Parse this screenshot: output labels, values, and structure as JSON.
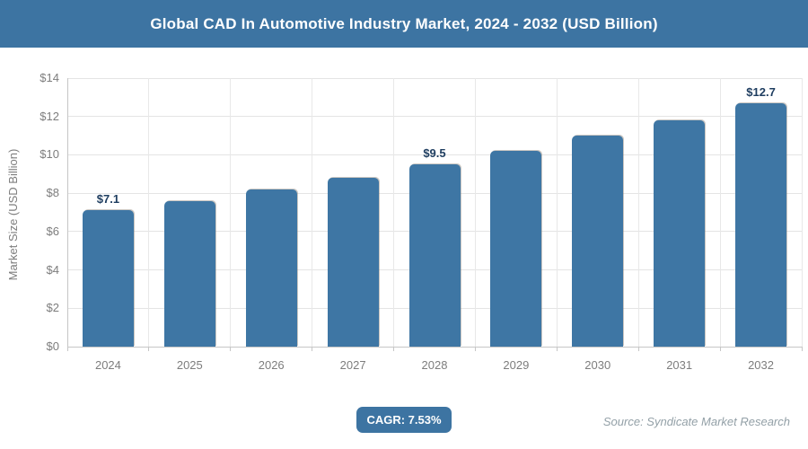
{
  "header": {
    "title": "Global CAD In Automotive Industry Market, 2024 - 2032 (USD Billion)"
  },
  "chart_data": {
    "type": "bar",
    "title": "Global CAD In Automotive Industry Market, 2024 - 2032 (USD Billion)",
    "categories": [
      "2024",
      "2025",
      "2026",
      "2027",
      "2028",
      "2029",
      "2030",
      "2031",
      "2032"
    ],
    "values": [
      7.1,
      7.6,
      8.2,
      8.8,
      9.5,
      10.2,
      11.0,
      11.8,
      12.7
    ],
    "bar_labels": [
      "$7.1",
      "",
      "",
      "",
      "$9.5",
      "",
      "",
      "",
      "$12.7"
    ],
    "xlabel": "",
    "ylabel": "Market Size (USD Billion)",
    "ylim": [
      0,
      14
    ],
    "yticks": [
      {
        "value": 0,
        "label": "$0"
      },
      {
        "value": 2,
        "label": "$2"
      },
      {
        "value": 4,
        "label": "$4"
      },
      {
        "value": 6,
        "label": "$6"
      },
      {
        "value": 8,
        "label": "$8"
      },
      {
        "value": 10,
        "label": "$10"
      },
      {
        "value": 12,
        "label": "$12"
      },
      {
        "value": 14,
        "label": "$14"
      }
    ],
    "grid": "horizontal and vertical light-gray gridlines",
    "legend": "none",
    "bar_color": "#3e76a4",
    "value_label_color": "#1d3c5f",
    "axis_text_color": "#7d7d7d"
  },
  "footer": {
    "cagr_label": "CAGR: 7.53%",
    "source": "Source: Syndicate Market Research"
  },
  "colors": {
    "accent_blue": "#3d74a2",
    "background": "#ffffff"
  }
}
